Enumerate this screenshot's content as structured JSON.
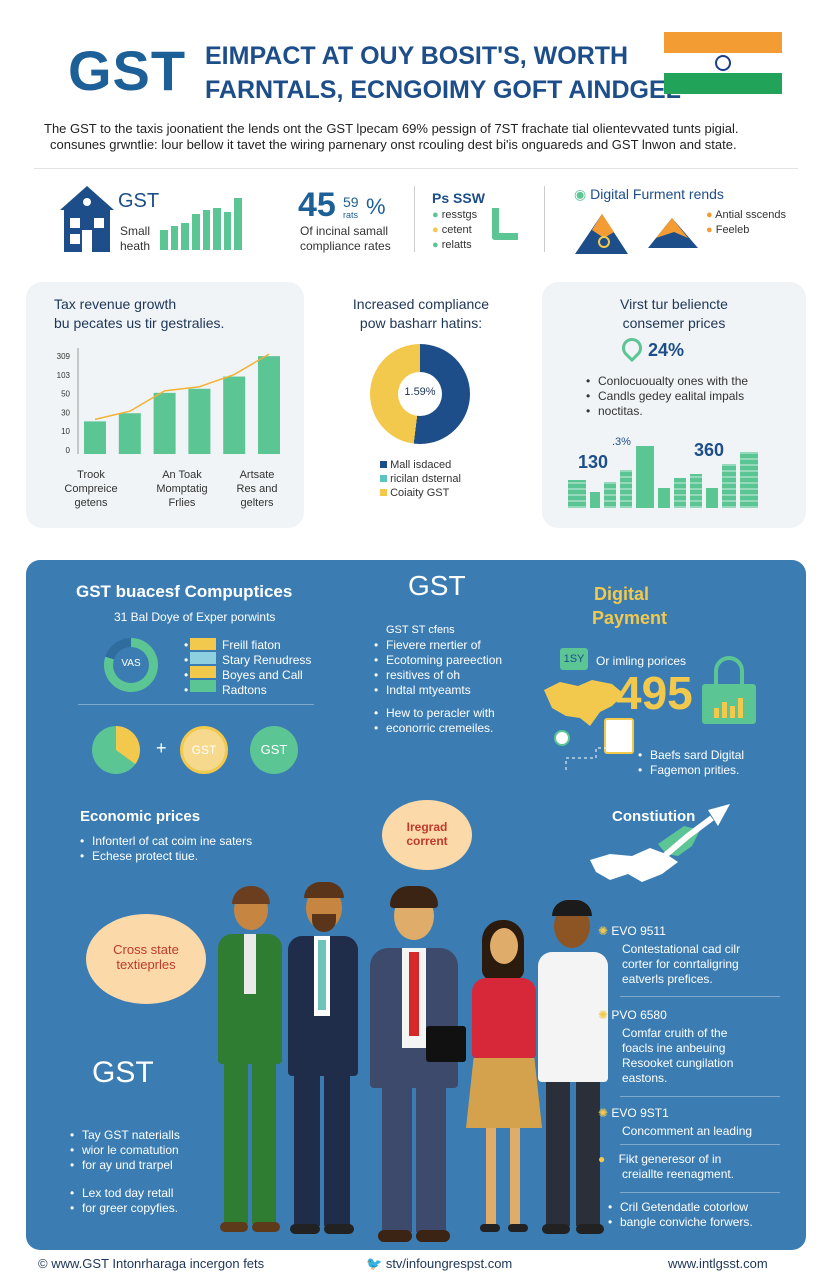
{
  "header": {
    "logo": "GST",
    "title_line1": "EIMPACT AT OUY BOSIT'S, WORTH",
    "title_line2": "FARNTALS, ECNGOIMY GOFT AINDGEL",
    "intro_line1": "The GST to the taxis joonatient the lends ont the GST lpecam 69% pessign of 7ST frachate tial olientevvated tunts pigial.",
    "intro_line2": "consunes grwntlie: lour bellow it tavet the wiring parnenary onst rcouling dest bi'is onguareds and GST lnwon and state."
  },
  "stats": {
    "gst_label": "GST",
    "small_label": "Small",
    "heath_label": "heath",
    "big_number": "45",
    "pct_small": "59",
    "pct_sub": "rats",
    "pct_sign": "%",
    "compliance_line1": "Of incinal samall",
    "compliance_line2": "compliance rates",
    "ps_title": "Ps SSW",
    "ps_items": [
      "resstgs",
      "cetent",
      "relatts"
    ],
    "digital_title": "Digital Furment rends",
    "digital_items": [
      "Antial sscends",
      "Feeleb"
    ]
  },
  "chart1": {
    "title_line1": "Tax revenue growth",
    "title_line2": "bu pecates us tir gestralies.",
    "y_ticks": [
      "309",
      "103",
      "50",
      "30",
      "10",
      "0"
    ],
    "cat_labels": [
      [
        "Trook",
        "Compreice",
        "getens"
      ],
      [
        "An Toak",
        "Momptatig",
        "Frlies"
      ],
      [
        "Artsate",
        "Res and",
        "gelters"
      ]
    ]
  },
  "chart_data": {
    "type": "bar",
    "categories": [
      "",
      "",
      "",
      "",
      "",
      ""
    ],
    "values": [
      40,
      50,
      75,
      80,
      95,
      120
    ],
    "ylim": [
      0,
      130
    ]
  },
  "chart2": {
    "title_line1": "Increased compliance",
    "title_line2": "pow basharr hatins:",
    "center_label": "1.59%",
    "legend": [
      "Mall isdaced",
      "ricilan dsternal",
      "Coiaity GST"
    ]
  },
  "chart3": {
    "title_line1": "Virst tur beliencte",
    "title_line2": "consemer prices",
    "percent": "24%",
    "bullets": [
      "Conlocuoualty ones with the",
      "Candls gedey ealital impals",
      "noctitas."
    ],
    "label_left": "130",
    "label_mid": ".3%",
    "label_right": "360"
  },
  "panel": {
    "comp_title": "GST buacesf Compuptices",
    "comp_sub": "31 Bal Doye of Exper porwints",
    "donut_label": "VAS",
    "comp_items": [
      "Freill fiaton",
      "Stary Renudress",
      "Boyes and Call",
      "Radtons"
    ],
    "equation_plus": "+",
    "coin_gst": "GST",
    "coin_gst2": "GST",
    "gst_center": "GST",
    "offers_title": "GST ST cfens",
    "offers": [
      "Fievere rnertier of",
      "Ecotoming pareection",
      "resitives of oh",
      "Indtal mtyeamts"
    ],
    "offers2": [
      "Hew to peracler with",
      "econorric cremeiles."
    ],
    "digital_title_1": "Digital",
    "digital_title_2": "Payment",
    "tag_label": "1SY",
    "pricing_label": "Or imling porices",
    "big_495": "495",
    "digital_bullets": [
      "Baefs sard Digital",
      "Fagemon prities."
    ],
    "econ_title": "Economic prices",
    "econ_bullets": [
      "Infonterl of cat coim ine saters",
      "Echese protect tiue."
    ],
    "bubble_text_1": "Iregrad",
    "bubble_text_2": "corrent",
    "const_title": "Constiution",
    "cross_line1": "Cross state",
    "cross_line2": "textieprles",
    "gst_large": "GST",
    "left_bullets_1": [
      "Tay GST naterialls",
      "wior le comatution",
      "for ay und trarpel"
    ],
    "left_bullets_2": [
      "Lex tod day retall",
      "for greer copyfies."
    ],
    "right_items": [
      {
        "title": "EVO 9511",
        "lines": [
          "Contestational cad cilr",
          "corter for conrtaligring",
          "eatverls prefices."
        ]
      },
      {
        "title": "PVO 6580",
        "lines": [
          "Comfar cruith of the",
          "foacls ine anbeuing",
          "Resooket cungilation",
          "eastons."
        ]
      },
      {
        "title": "EVO 9ST1",
        "lines": [
          "Concomment an leading"
        ]
      },
      {
        "title": "",
        "lines": [
          "Fikt generesor of in",
          "creiallte reenagment."
        ]
      },
      {
        "title": "",
        "lines": [
          "Cril Getendatle cotorlow",
          "bangle conviche forwers."
        ]
      }
    ]
  },
  "footer": {
    "left": "www.GST Intonrharaga incergon fets",
    "mid": "stv/infoungrespst.com",
    "right": "www.intlgsst.com"
  },
  "colors": {
    "navy": "#1d4e89",
    "green": "#5bc594",
    "yellow": "#f2c94c",
    "orange": "#f39c33",
    "panel": "#3b7db3"
  }
}
